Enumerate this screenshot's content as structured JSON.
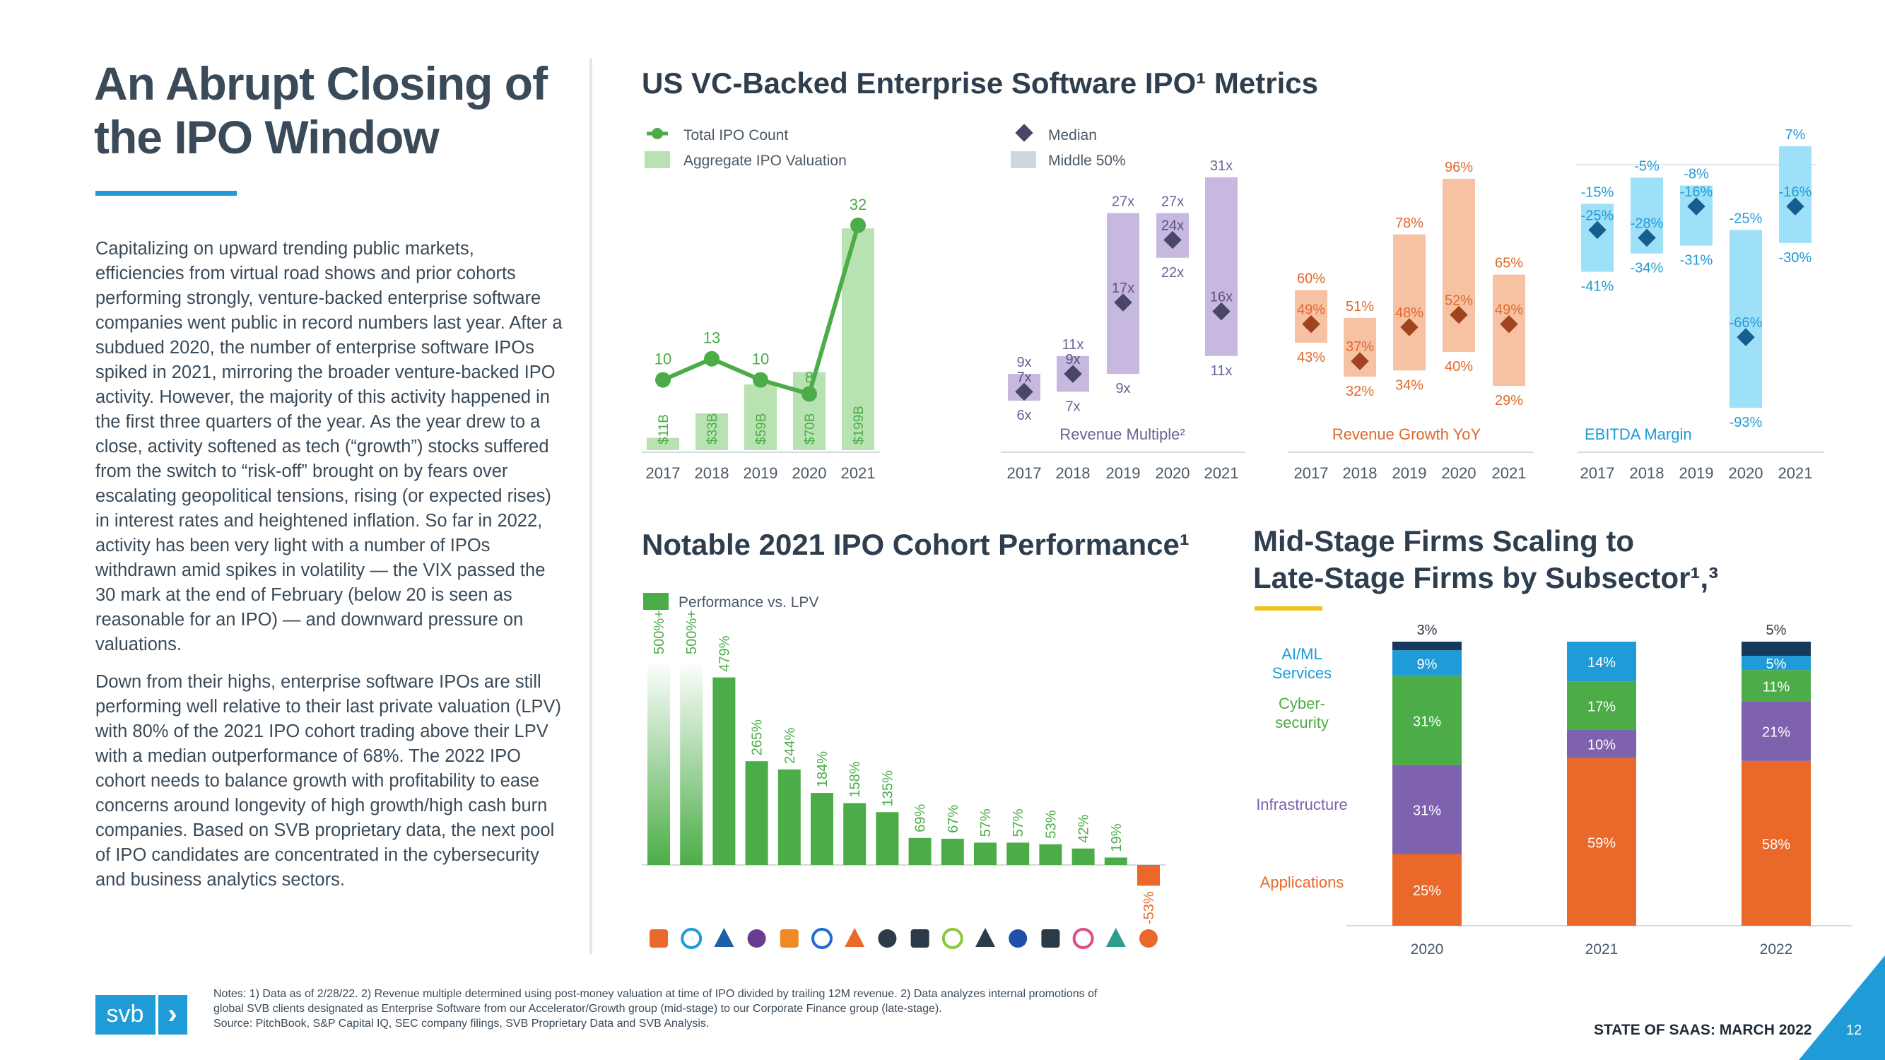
{
  "page": {
    "title": "An Abrupt Closing of the IPO Window",
    "body_paragraphs": [
      "Capitalizing on upward trending public markets, efficiencies from virtual road shows and prior cohorts performing strongly, venture-backed enterprise software companies went public in record numbers last year. After a subdued 2020, the number of enterprise software IPOs spiked in 2021, mirroring the broader venture-backed IPO activity. However, the majority of this activity happened in the first three quarters of the year. As the year drew to a close, activity softened as tech (“growth”) stocks suffered from the switch to “risk-off” brought on by fears over escalating geopolitical tensions, rising (or expected rises) in interest rates and heightened inflation. So far in 2022, activity has been very light with a number of IPOs withdrawn amid spikes in volatility — the VIX passed the 30 mark at the end of February (below 20 is seen as reasonable for an IPO) — and downward pressure on valuations.",
      "Down from their highs, enterprise software IPOs are still performing well relative to their last private valuation (LPV) with 80% of the 2021 IPO cohort trading above their LPV with a median outperformance of 68%. The 2022 IPO cohort needs to balance growth with profitability to ease concerns around longevity of high growth/high cash burn companies. Based on SVB proprietary data, the next pool of IPO candidates are concentrated in the cybersecurity and business analytics sectors."
    ],
    "footnotes": [
      "Notes: 1) Data as of 2/28/22. 2) Revenue multiple determined using post-money valuation at time of IPO divided by trailing 12M revenue. 2) Data analyzes internal promotions of",
      "global SVB clients designated as Enterprise Software from our Accelerator/Growth group (mid-stage) to our Corporate Finance group (late-stage).",
      "Source: PitchBook, S&P Capital IQ, SEC company filings, SVB Proprietary Data and SVB Analysis."
    ],
    "logo_text": "svb",
    "logo_chevron": "›",
    "footer_tag": "STATE OF SAAS: MARCH 2022",
    "page_number": "12"
  },
  "colors": {
    "accent_blue": "#1f9bd7",
    "accent_yellow": "#f2c21b",
    "green_line": "#4cad48",
    "green_bar": "#b9e2b2",
    "purple_bar": "#c6b8df",
    "orange_bar": "#f7c1a4",
    "blue_bar": "#9ee0f7",
    "cohort_green": "#4cad48",
    "cohort_red": "#e9682a",
    "stack_applications": "#e9682a",
    "stack_infrastructure": "#7e62ae",
    "stack_cyber": "#4cad48",
    "stack_aiml": "#1f9bd7",
    "stack_top": "#163a5c"
  },
  "metrics_title": "US VC-Backed Enterprise Software IPO¹ Metrics",
  "cohort_title": "Notable 2021 IPO Cohort Performance¹",
  "scaling_title_lines": [
    "Mid-Stage Firms Scaling to",
    "Late-Stage Firms by Subsector¹,³"
  ],
  "chart_data": [
    {
      "id": "ipo-count-valuation",
      "type": "bar",
      "categories": [
        "2017",
        "2018",
        "2019",
        "2020",
        "2021"
      ],
      "legend": [
        "Total IPO Count",
        "Aggregate IPO Valuation"
      ],
      "series": [
        {
          "name": "Aggregate IPO Valuation",
          "type": "bar",
          "values": [
            11,
            33,
            59,
            70,
            199
          ],
          "labels": [
            "$11B",
            "$33B",
            "$59B",
            "$70B",
            "$199B"
          ]
        },
        {
          "name": "Total IPO Count",
          "type": "line",
          "values": [
            10,
            13,
            10,
            8,
            32
          ]
        }
      ]
    },
    {
      "id": "revenue-multiple",
      "type": "range",
      "label": "Revenue Multiple²",
      "legend": [
        "Median",
        "Middle 50%"
      ],
      "categories": [
        "2017",
        "2018",
        "2019",
        "2020",
        "2021"
      ],
      "low": [
        6,
        7,
        9,
        22,
        11
      ],
      "high": [
        9,
        11,
        27,
        27,
        31
      ],
      "median": [
        7,
        9,
        17,
        24,
        16
      ],
      "low_labels": [
        "6x",
        "7x",
        "9x",
        "22x",
        "11x"
      ],
      "high_labels": [
        "9x",
        "11x",
        "27x",
        "27x",
        "31x"
      ],
      "median_labels": [
        "7x",
        "9x",
        "17x",
        "24x",
        "16x"
      ]
    },
    {
      "id": "revenue-growth",
      "type": "range",
      "label": "Revenue Growth YoY",
      "categories": [
        "2017",
        "2018",
        "2019",
        "2020",
        "2021"
      ],
      "low": [
        43,
        32,
        34,
        40,
        29
      ],
      "high": [
        60,
        51,
        78,
        96,
        65
      ],
      "median": [
        49,
        37,
        48,
        52,
        49
      ],
      "low_labels": [
        "43%",
        "32%",
        "34%",
        "40%",
        "29%"
      ],
      "high_labels": [
        "60%",
        "51%",
        "78%",
        "96%",
        "65%"
      ],
      "median_labels": [
        "49%",
        "37%",
        "48%",
        "52%",
        "49%"
      ]
    },
    {
      "id": "ebitda-margin",
      "type": "range",
      "label": "EBITDA Margin",
      "categories": [
        "2017",
        "2018",
        "2019",
        "2020",
        "2021"
      ],
      "low": [
        -41,
        -34,
        -31,
        -93,
        -30
      ],
      "high": [
        -15,
        -5,
        -8,
        -25,
        7
      ],
      "median": [
        -25,
        -28,
        -16,
        -66,
        -16
      ],
      "low_labels": [
        "-41%",
        "-34%",
        "-31%",
        "-93%",
        "-30%"
      ],
      "high_labels": [
        "-15%",
        "-5%",
        "-8%",
        "-25%",
        "7%"
      ],
      "median_labels": [
        "-25%",
        "-28%",
        "-16%",
        "-66%",
        "-16%"
      ]
    },
    {
      "id": "cohort-performance",
      "type": "bar",
      "legend": [
        "Performance vs. LPV"
      ],
      "values": [
        500,
        500,
        479,
        265,
        244,
        184,
        158,
        135,
        69,
        67,
        57,
        57,
        53,
        42,
        19,
        -53
      ],
      "labels": [
        "500%+",
        "500%+",
        "479%",
        "265%",
        "244%",
        "184%",
        "158%",
        "135%",
        "69%",
        "67%",
        "57%",
        "57%",
        "53%",
        "42%",
        "19%",
        "-53%"
      ],
      "capped": [
        true,
        true,
        false,
        false,
        false,
        false,
        false,
        false,
        false,
        false,
        false,
        false,
        false,
        false,
        false,
        false
      ]
    },
    {
      "id": "subsector-scaling",
      "type": "bar",
      "stacked": true,
      "categories": [
        "2020",
        "2021",
        "2022"
      ],
      "series": [
        {
          "name": "Applications",
          "values": [
            25,
            59,
            58
          ]
        },
        {
          "name": "Infrastructure",
          "values": [
            31,
            10,
            21
          ]
        },
        {
          "name": "Cyber-security",
          "values": [
            31,
            17,
            11
          ]
        },
        {
          "name": "AI/ML Services",
          "values": [
            9,
            14,
            5
          ]
        },
        {
          "name": "",
          "values": [
            3,
            0,
            5
          ]
        }
      ],
      "category_labels": [
        "Applications",
        "Infrastructure",
        "Cyber-\nsecurity",
        "AI/ML\nServices"
      ]
    }
  ]
}
